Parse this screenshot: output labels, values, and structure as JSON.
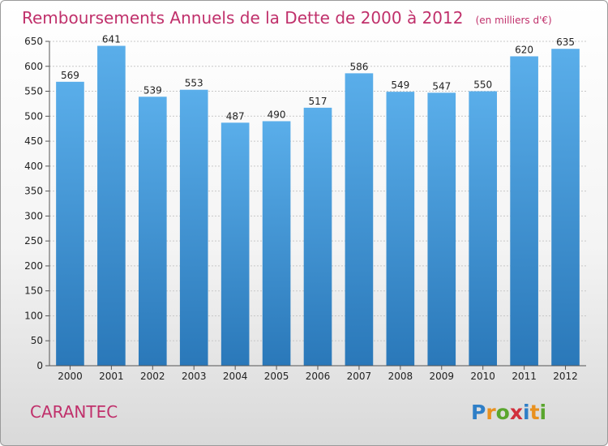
{
  "chart_data": {
    "type": "bar",
    "title": "Remboursements Annuels de la Dette de 2000 à 2012",
    "unit_note": "(en milliers d'€)",
    "xlabel": "",
    "ylabel": "",
    "categories": [
      "2000",
      "2001",
      "2002",
      "2003",
      "2004",
      "2005",
      "2006",
      "2007",
      "2008",
      "2009",
      "2010",
      "2011",
      "2012"
    ],
    "values": [
      569,
      641,
      539,
      553,
      487,
      490,
      517,
      586,
      549,
      547,
      550,
      620,
      635
    ],
    "ylim": [
      0,
      650
    ],
    "yticks": [
      0,
      50,
      100,
      150,
      200,
      250,
      300,
      350,
      400,
      450,
      500,
      550,
      600,
      650
    ],
    "grid": true,
    "bar_color_top": "#5aaeea",
    "bar_color_bottom": "#2a78b9"
  },
  "commune_name": "CARANTEC",
  "logo": {
    "letters": [
      "P",
      "r",
      "o",
      "x",
      "i",
      "t",
      "i"
    ],
    "colors": [
      "#2f7fc7",
      "#e9911f",
      "#5aa62e",
      "#d12f3c",
      "#2f7fc7",
      "#e9911f",
      "#5aa62e"
    ]
  },
  "colors": {
    "accent": "#c0306b"
  }
}
